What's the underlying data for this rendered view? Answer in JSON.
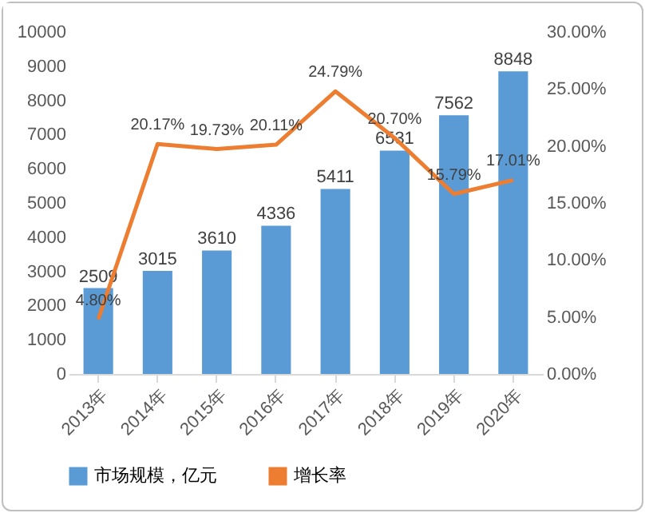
{
  "chart_data": {
    "type": "bar",
    "categories": [
      "2013年",
      "2014年",
      "2015年",
      "2016年",
      "2017年",
      "2018年",
      "2019年",
      "2020年"
    ],
    "series": [
      {
        "name": "市场规模，亿元",
        "color": "#5b9bd5",
        "values": [
          2509,
          3015,
          3610,
          4336,
          5411,
          6531,
          7562,
          8848
        ],
        "value_labels": [
          "2509",
          "3015",
          "3610",
          "4336",
          "5411",
          "6531",
          "7562",
          "8848"
        ]
      },
      {
        "name": "增长率",
        "type": "line",
        "axis": "y2",
        "color": "#ed7d31",
        "values": [
          4.8,
          20.17,
          19.73,
          20.11,
          24.79,
          20.7,
          15.79,
          17.01
        ],
        "value_labels": [
          "4.80%",
          "20.17%",
          "19.73%",
          "20.11%",
          "24.79%",
          "20.70%",
          "15.79%",
          "17.01%"
        ]
      }
    ],
    "ylim": [
      0,
      10000
    ],
    "yticks": [
      0,
      1000,
      2000,
      3000,
      4000,
      5000,
      6000,
      7000,
      8000,
      9000,
      10000
    ],
    "y2lim": [
      0,
      30
    ],
    "y2ticks": [
      {
        "value": 0,
        "label": "0.00%"
      },
      {
        "value": 5,
        "label": "5.00%"
      },
      {
        "value": 10,
        "label": "10.00%"
      },
      {
        "value": 15,
        "label": "15.00%"
      },
      {
        "value": 20,
        "label": "20.00%"
      },
      {
        "value": 25,
        "label": "25.00%"
      },
      {
        "value": 30,
        "label": "30.00%"
      }
    ],
    "legend": "bottom",
    "grid": false,
    "marker": "none",
    "line_style": "solid"
  }
}
